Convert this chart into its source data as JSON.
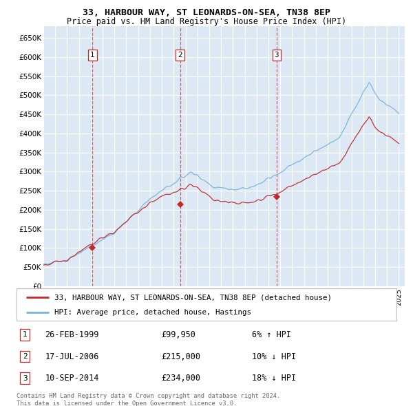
{
  "title1": "33, HARBOUR WAY, ST LEONARDS-ON-SEA, TN38 8EP",
  "title2": "Price paid vs. HM Land Registry's House Price Index (HPI)",
  "ylabel_ticks": [
    "£0",
    "£50K",
    "£100K",
    "£150K",
    "£200K",
    "£250K",
    "£300K",
    "£350K",
    "£400K",
    "£450K",
    "£500K",
    "£550K",
    "£600K",
    "£650K"
  ],
  "ytick_values": [
    0,
    50000,
    100000,
    150000,
    200000,
    250000,
    300000,
    350000,
    400000,
    450000,
    500000,
    550000,
    600000,
    650000
  ],
  "hpi_color": "#7ab3d9",
  "price_color": "#c0282a",
  "bg_color": "#dce9f5",
  "grid_color": "#ffffff",
  "sales": [
    {
      "year": 1999.15,
      "price": 99950,
      "label": "1"
    },
    {
      "year": 2006.54,
      "price": 215000,
      "label": "2"
    },
    {
      "year": 2014.69,
      "price": 234000,
      "label": "3"
    }
  ],
  "sale_labels_info": [
    {
      "num": "1",
      "date": "26-FEB-1999",
      "price": "£99,950",
      "note": "6% ↑ HPI"
    },
    {
      "num": "2",
      "date": "17-JUL-2006",
      "price": "£215,000",
      "note": "10% ↓ HPI"
    },
    {
      "num": "3",
      "date": "10-SEP-2014",
      "price": "£234,000",
      "note": "18% ↓ HPI"
    }
  ],
  "legend1": "33, HARBOUR WAY, ST LEONARDS-ON-SEA, TN38 8EP (detached house)",
  "legend2": "HPI: Average price, detached house, Hastings",
  "footnote": "Contains HM Land Registry data © Crown copyright and database right 2024.\nThis data is licensed under the Open Government Licence v3.0."
}
